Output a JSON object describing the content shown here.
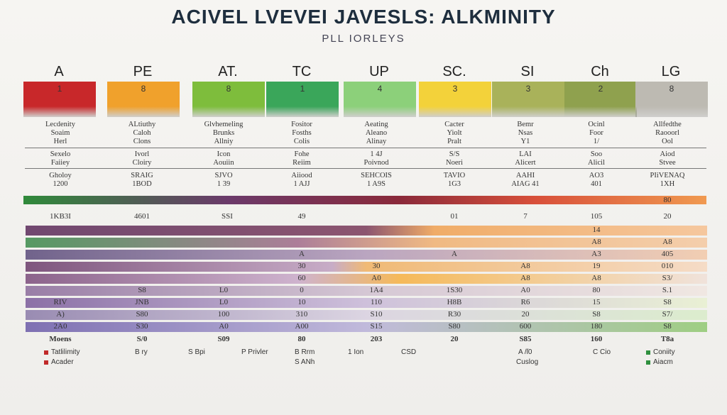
{
  "header": {
    "title": "ACIVEL LVEVEI JAVESLS: ALKMINITY",
    "subtitle": "PLL IORLEYS"
  },
  "columns": [
    {
      "label": "A",
      "value": "1",
      "color": "#c8282a"
    },
    {
      "label": "PE",
      "value": "8",
      "color": "#f0a12c"
    },
    {
      "label": "AT.",
      "value": "8",
      "color": "#7ebd3c"
    },
    {
      "label": "TC",
      "value": "1",
      "color": "#3aa65a"
    },
    {
      "label": "UP",
      "value": "4",
      "color": "#8cd07a"
    },
    {
      "label": "SC.",
      "value": "3",
      "color": "#f3d23a"
    },
    {
      "label": "SI",
      "value": "3",
      "color": "#a9b25a"
    },
    {
      "label": "Ch",
      "value": "2",
      "color": "#8fa14e"
    },
    {
      "label": "LG",
      "value": "8",
      "color": "#bdbab2"
    }
  ],
  "info_groups": [
    [
      [
        "Lecdenity",
        "Soaim",
        "Herl"
      ],
      [
        "ALtiuthy",
        "Caloh",
        "Clons"
      ],
      [
        "Glvhemeling",
        "Brunks",
        "Allniy"
      ],
      [
        "Fositor",
        "Fosths",
        "Colis"
      ],
      [
        "Aeating",
        "Aleano",
        "Alinay"
      ],
      [
        "Cacter",
        "Yiolt",
        "Pralt"
      ],
      [
        "Bemr",
        "Nsas",
        "Y1"
      ],
      [
        "Ocinl",
        "Foor",
        "1/"
      ],
      [
        "Allfedthe",
        "Raooorl",
        "Ool"
      ]
    ],
    [
      [
        "Sexelo",
        "Faiiey"
      ],
      [
        "Ivorl",
        "Cloiry"
      ],
      [
        "Icon",
        "Aouiin"
      ],
      [
        "Fohe",
        "Reiim"
      ],
      [
        "1 4J",
        "Poivnod"
      ],
      [
        "S/S",
        "Noeri"
      ],
      [
        "LAI",
        "Alicert"
      ],
      [
        "Soo",
        "Alicil"
      ],
      [
        "Aiod",
        "Stvee"
      ]
    ],
    [
      [
        "Gholoy",
        "1200"
      ],
      [
        "SRAIG",
        "1BOD"
      ],
      [
        "SJVO",
        "1 39"
      ],
      [
        "Aiiood",
        "1 AJJ"
      ],
      [
        "SEHCOIS",
        "1 A9S"
      ],
      [
        "TAVIO",
        "1G3"
      ],
      [
        "AAHI",
        "AIAG 41"
      ],
      [
        "AO3",
        "401"
      ],
      [
        "PIiVENAQ",
        "1XH"
      ]
    ]
  ],
  "bar_end_label": "80",
  "bar_labels": [
    "1KB3I",
    "4601",
    "SSI",
    "49",
    "01",
    "7",
    "105",
    "20"
  ],
  "stripes": [
    [
      null,
      null,
      null,
      null,
      null,
      null,
      null,
      "14",
      null
    ],
    [
      null,
      null,
      null,
      null,
      null,
      null,
      null,
      "A8",
      "A8"
    ],
    [
      null,
      null,
      null,
      "A",
      null,
      "A",
      null,
      "A3",
      "405"
    ],
    [
      null,
      null,
      null,
      "30",
      "30",
      null,
      "A8",
      "19",
      "010"
    ],
    [
      null,
      null,
      null,
      "60",
      "A0",
      null,
      "A8",
      "A8",
      "S3/"
    ],
    [
      null,
      "S8",
      "L0",
      "0",
      "1A4",
      "1S30",
      "A0",
      "80",
      "S.1"
    ],
    [
      "RIV",
      "JNB",
      "L0",
      "10",
      "110",
      "H8B",
      "R6",
      "15",
      "S8"
    ],
    [
      "A)",
      "S80",
      "100",
      "310",
      "S10",
      "R30",
      "20",
      "S8",
      "S7/"
    ],
    [
      "2A0",
      "S30",
      "A0",
      "A00",
      "S15",
      "S80",
      "600",
      "180",
      "S8"
    ]
  ],
  "footer_labels": [
    "Moens",
    "S/0",
    "S09",
    "80",
    "203",
    "20",
    "S85",
    "160",
    "T8a"
  ],
  "legend": [
    {
      "text": "Tatlilimity",
      "color": "#c02a2a"
    },
    {
      "text": "Acader",
      "color": "#c02a2a"
    },
    {
      "text": "Coniity",
      "color": "#2f8f3e"
    },
    {
      "text": "Aiacm",
      "color": "#2f8f3e"
    }
  ],
  "notes": [
    "B ry",
    "S Bpi",
    "P Privler",
    "B Rrm",
    "1 Ion",
    "CSD",
    "A /ſ0",
    "C Cio",
    "S ANh",
    "Cuslog"
  ]
}
